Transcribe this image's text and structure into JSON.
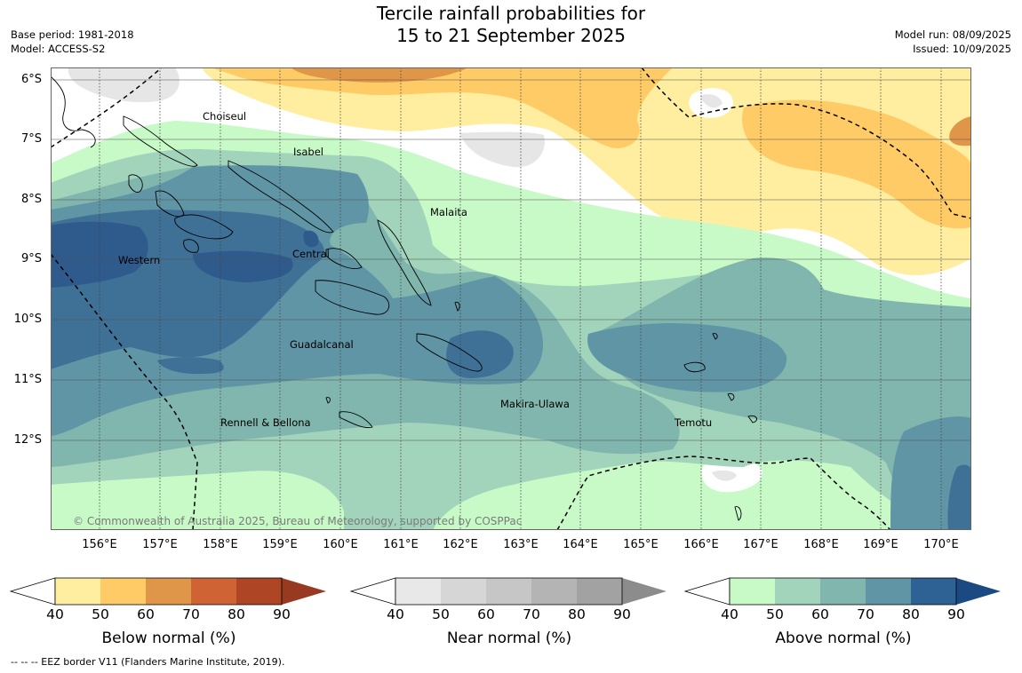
{
  "title": {
    "line1": "Tercile rainfall probabilities for",
    "line2": "15 to 21 September 2025"
  },
  "meta_left": {
    "base_period": "Base period: 1981-2018",
    "model": "Model: ACCESS-S2"
  },
  "meta_right": {
    "model_run": "Model run: 08/09/2025",
    "issued": "Issued: 10/09/2025"
  },
  "map": {
    "lat_labels": [
      "6°S",
      "7°S",
      "8°S",
      "9°S",
      "10°S",
      "11°S",
      "12°S"
    ],
    "lon_labels": [
      "156°E",
      "157°E",
      "158°E",
      "159°E",
      "160°E",
      "161°E",
      "162°E",
      "163°E",
      "164°E",
      "165°E",
      "166°E",
      "167°E",
      "168°E",
      "169°E",
      "170°E"
    ],
    "places": [
      {
        "name": "Choiseul",
        "lon": 157.7,
        "lat": -6.6
      },
      {
        "name": "Isabel",
        "lon": 159.2,
        "lat": -7.2
      },
      {
        "name": "Malaita",
        "lon": 161.5,
        "lat": -8.2
      },
      {
        "name": "Western",
        "lon": 156.3,
        "lat": -9.0
      },
      {
        "name": "Central",
        "lon": 159.2,
        "lat": -8.9
      },
      {
        "name": "Guadalcanal",
        "lon": 159.1,
        "lat": -10.4
      },
      {
        "name": "Makira-Ulawa",
        "lon": 162.7,
        "lat": -11.4
      },
      {
        "name": "Rennell & Bellona",
        "lon": 158.0,
        "lat": -11.7
      },
      {
        "name": "Temotu",
        "lon": 165.6,
        "lat": -11.7
      }
    ],
    "copyright": "© Commonwealth of Australia 2025, Bureau of Meteorology, supported by COSPPac"
  },
  "colorbars": [
    {
      "title": "Below normal (%)",
      "ticks": [
        "40",
        "50",
        "60",
        "70",
        "80",
        "90"
      ],
      "colors": [
        "#ffeea0",
        "#ffcb66",
        "#e09648",
        "#cf6334",
        "#ae4626",
        "#983a21"
      ]
    },
    {
      "title": "Near normal (%)",
      "ticks": [
        "40",
        "50",
        "60",
        "70",
        "80",
        "90"
      ],
      "colors": [
        "#e8e8e8",
        "#d6d6d6",
        "#c6c6c6",
        "#b4b4b4",
        "#a2a2a2",
        "#8c8c8c"
      ]
    },
    {
      "title": "Above normal (%)",
      "ticks": [
        "40",
        "50",
        "60",
        "70",
        "80",
        "90"
      ],
      "colors": [
        "#c8fac8",
        "#a2d4bc",
        "#80b6ad",
        "#5f95a5",
        "#2f6294",
        "#1b4a82"
      ]
    }
  ],
  "footnote": "-- -- -- EEZ border V11 (Flanders Marine Institute, 2019)."
}
